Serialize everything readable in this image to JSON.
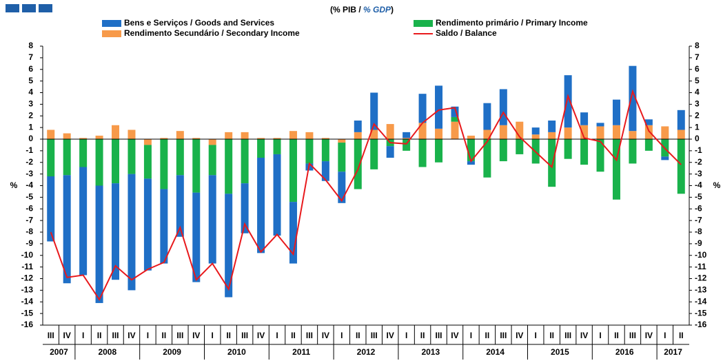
{
  "chart_data": {
    "type": "stacked-bar-line",
    "subtitle": [
      "(% PIB / ",
      "% GDP",
      ")"
    ],
    "ylabel": "%",
    "y2label": "%",
    "categories": [
      "III",
      "IV",
      "I",
      "II",
      "III",
      "IV",
      "I",
      "II",
      "III",
      "IV",
      "I",
      "II",
      "III",
      "IV",
      "I",
      "II",
      "III",
      "IV",
      "I",
      "II",
      "III",
      "IV",
      "I",
      "II",
      "III",
      "IV",
      "I",
      "II",
      "III",
      "IV",
      "I",
      "II",
      "III",
      "IV",
      "I",
      "II",
      "III",
      "IV",
      "I",
      "II"
    ],
    "years": [
      "2007",
      "2008",
      "2009",
      "2010",
      "2011",
      "2012",
      "2013",
      "2014",
      "2015",
      "2016",
      "2017"
    ],
    "series": [
      {
        "name": "Bens e Serviços / Goods and Services",
        "color": "#1f6fc6",
        "kind": "bar",
        "values": [
          -5.6,
          -9.3,
          -9.3,
          -10.1,
          -8.3,
          -10.0,
          -7.9,
          -6.4,
          -5.3,
          -7.7,
          -7.6,
          -8.9,
          -4.3,
          -8.2,
          -7.0,
          -5.3,
          -0.6,
          -1.7,
          -2.7,
          1.0,
          3.2,
          -1.0,
          0.5,
          2.5,
          3.7,
          0.9,
          -0.3,
          2.3,
          3.1,
          0.0,
          0.6,
          1.0,
          4.5,
          1.1,
          0.3,
          2.2,
          5.6,
          0.5,
          -0.3,
          1.7
        ]
      },
      {
        "name": "Rendimento primário / Primary Income",
        "color": "#19b24b",
        "kind": "bar",
        "values": [
          -3.2,
          -3.1,
          -2.4,
          -4.0,
          -3.8,
          -3.0,
          -2.9,
          -4.3,
          -3.1,
          -4.6,
          -2.6,
          -4.7,
          -3.8,
          -1.6,
          -1.3,
          -5.4,
          -2.1,
          -1.9,
          -2.5,
          -4.3,
          -2.6,
          -0.6,
          -1.0,
          -2.4,
          -2.0,
          0.4,
          -1.9,
          -3.3,
          -1.9,
          -1.3,
          -2.1,
          -4.1,
          -1.7,
          -2.2,
          -2.8,
          -5.2,
          -2.1,
          -1.0,
          -1.5,
          -4.7
        ]
      },
      {
        "name": "Rendimento Secundário / Secondary Income",
        "color": "#f79a4a",
        "kind": "bar",
        "values": [
          0.8,
          0.5,
          0.1,
          0.3,
          1.2,
          0.8,
          -0.5,
          0.1,
          0.7,
          0.1,
          -0.5,
          0.6,
          0.6,
          0.1,
          0.1,
          0.7,
          0.6,
          0.1,
          -0.3,
          0.6,
          0.8,
          1.3,
          0.1,
          1.4,
          0.9,
          1.5,
          0.3,
          0.8,
          1.2,
          1.5,
          0.4,
          0.6,
          1.0,
          1.2,
          1.1,
          1.2,
          0.7,
          1.2,
          1.1,
          0.8
        ]
      },
      {
        "name": "Saldo / Balance",
        "color": "#e8191c",
        "kind": "line",
        "values": [
          -8.0,
          -11.9,
          -11.7,
          -13.8,
          -10.9,
          -12.1,
          -11.2,
          -10.6,
          -7.6,
          -12.1,
          -10.7,
          -12.9,
          -7.3,
          -9.7,
          -8.2,
          -9.9,
          -2.1,
          -3.5,
          -5.3,
          -2.6,
          1.3,
          -0.3,
          -0.4,
          1.4,
          2.5,
          2.7,
          -1.9,
          -0.2,
          2.3,
          0.2,
          -1.1,
          -2.4,
          3.7,
          0.1,
          -0.2,
          -1.8,
          4.1,
          0.7,
          -0.8,
          -2.2
        ]
      }
    ],
    "ylim": [
      -16,
      8
    ],
    "yticks": [
      -16,
      -15,
      -14,
      -13,
      -12,
      -11,
      -10,
      -9,
      -8,
      -7,
      -6,
      -5,
      -4,
      -3,
      -2,
      -1,
      0,
      1,
      2,
      3,
      4,
      5,
      6,
      7,
      8
    ],
    "y2lim": [
      -16,
      8
    ],
    "y2ticks": [
      -16,
      -15,
      -14,
      -13,
      -12,
      -11,
      -10,
      -9,
      -8,
      -7,
      -6,
      -5,
      -4,
      -3,
      -2,
      -1,
      0,
      1,
      2,
      3,
      4,
      5,
      6,
      7,
      8
    ]
  }
}
